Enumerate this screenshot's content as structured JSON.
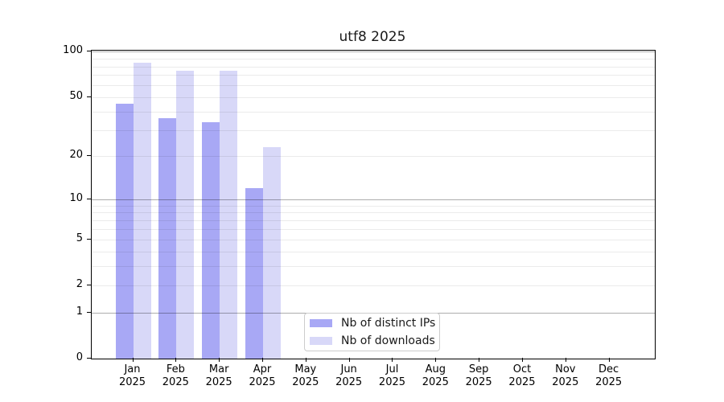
{
  "title": "utf8 2025",
  "legend": {
    "items": [
      {
        "label": "Nb of distinct IPs",
        "color": "#a8a8f5"
      },
      {
        "label": "Nb of downloads",
        "color": "#d8d8f8"
      }
    ]
  },
  "chart_data": {
    "type": "bar",
    "title": "utf8 2025",
    "categories": [
      "Jan 2025",
      "Feb 2025",
      "Mar 2025",
      "Apr 2025",
      "May 2025",
      "Jun 2025",
      "Jul 2025",
      "Aug 2025",
      "Sep 2025",
      "Oct 2025",
      "Nov 2025",
      "Dec 2025"
    ],
    "series": [
      {
        "name": "Nb of distinct IPs",
        "color": "#a8a8f5",
        "values": [
          45,
          36,
          34,
          12,
          0,
          0,
          0,
          0,
          0,
          0,
          0,
          0
        ]
      },
      {
        "name": "Nb of downloads",
        "color": "#d8d8f8",
        "values": [
          85,
          75,
          75,
          23,
          0,
          0,
          0,
          0,
          0,
          0,
          0,
          0
        ]
      }
    ],
    "xlabel": "",
    "ylabel": "",
    "yscale": "log1p",
    "yticks": [
      100,
      50,
      20,
      10,
      5,
      2,
      1,
      0
    ],
    "ylim": [
      0,
      104
    ],
    "grid": true,
    "legend_position": "lower center-right"
  }
}
